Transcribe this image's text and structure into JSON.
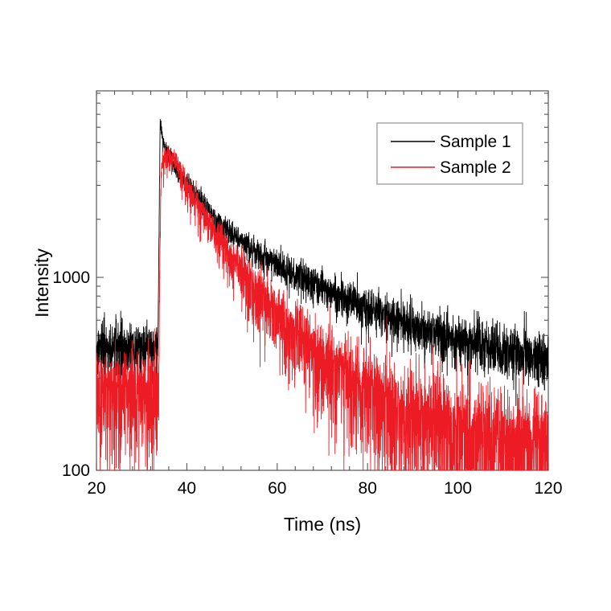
{
  "figure": {
    "background_color": "#ffffff",
    "frame_color": "#555555"
  },
  "chart_data": {
    "type": "line",
    "title": "",
    "xlabel": "Time (ns)",
    "ylabel": "Intensity",
    "x_axis": {
      "scale": "linear",
      "min": 20,
      "max": 120,
      "major_ticks": [
        20,
        40,
        60,
        80,
        100,
        120
      ],
      "minor_tick_step": 4
    },
    "y_axis": {
      "scale": "log",
      "min": 100,
      "max": 9270,
      "major_ticks": [
        100,
        1000
      ],
      "minor_ticks": [
        200,
        300,
        400,
        500,
        600,
        700,
        800,
        900,
        2000,
        3000,
        4000,
        5000,
        6000,
        7000,
        8000,
        9000
      ]
    },
    "grid": false,
    "legend": {
      "position": "upper-right",
      "border_color": "#a9a9a9",
      "background": "#ffffff"
    },
    "series": [
      {
        "name": "Sample 1",
        "color": "#000000",
        "baseline_intensity": 430,
        "peak_intensity": 6500,
        "peak_time_ns": 34.1,
        "anchors": [
          [
            20,
            430
          ],
          [
            33.6,
            430
          ],
          [
            34.1,
            6500
          ],
          [
            34.6,
            5300
          ],
          [
            35.3,
            4500
          ],
          [
            36.3,
            4050
          ],
          [
            38,
            3550
          ],
          [
            40,
            3080
          ],
          [
            43,
            2520
          ],
          [
            46,
            2060
          ],
          [
            50,
            1690
          ],
          [
            55,
            1380
          ],
          [
            60,
            1160
          ],
          [
            65,
            1010
          ],
          [
            70,
            890
          ],
          [
            75,
            785
          ],
          [
            80,
            700
          ],
          [
            85,
            628
          ],
          [
            90,
            568
          ],
          [
            95,
            518
          ],
          [
            100,
            478
          ],
          [
            105,
            446
          ],
          [
            110,
            420
          ],
          [
            115,
            400
          ],
          [
            120,
            386
          ]
        ],
        "noise_coeff": 1.3,
        "noise_down_amp": 1.2
      },
      {
        "name": "Sample 2",
        "color": "#ed1c24",
        "baseline_intensity": 265,
        "peak_intensity": 4300,
        "peak_time_ns": 35.8,
        "anchors": [
          [
            20,
            265
          ],
          [
            33.7,
            265
          ],
          [
            34.3,
            3600
          ],
          [
            35,
            4200
          ],
          [
            35.8,
            4300
          ],
          [
            36.8,
            4150
          ],
          [
            38,
            3800
          ],
          [
            40,
            3050
          ],
          [
            42,
            2550
          ],
          [
            44,
            2120
          ],
          [
            46,
            1800
          ],
          [
            48,
            1520
          ],
          [
            50,
            1290
          ],
          [
            53,
            1030
          ],
          [
            56,
            855
          ],
          [
            60,
            665
          ],
          [
            64,
            530
          ],
          [
            68,
            435
          ],
          [
            72,
            365
          ],
          [
            76,
            312
          ],
          [
            80,
            272
          ],
          [
            85,
            234
          ],
          [
            90,
            204
          ],
          [
            95,
            182
          ],
          [
            100,
            166
          ],
          [
            105,
            152
          ],
          [
            110,
            142
          ],
          [
            115,
            134
          ],
          [
            120,
            128
          ]
        ],
        "noise_coeff": 1.6,
        "noise_down_amp": 2.2
      }
    ]
  }
}
